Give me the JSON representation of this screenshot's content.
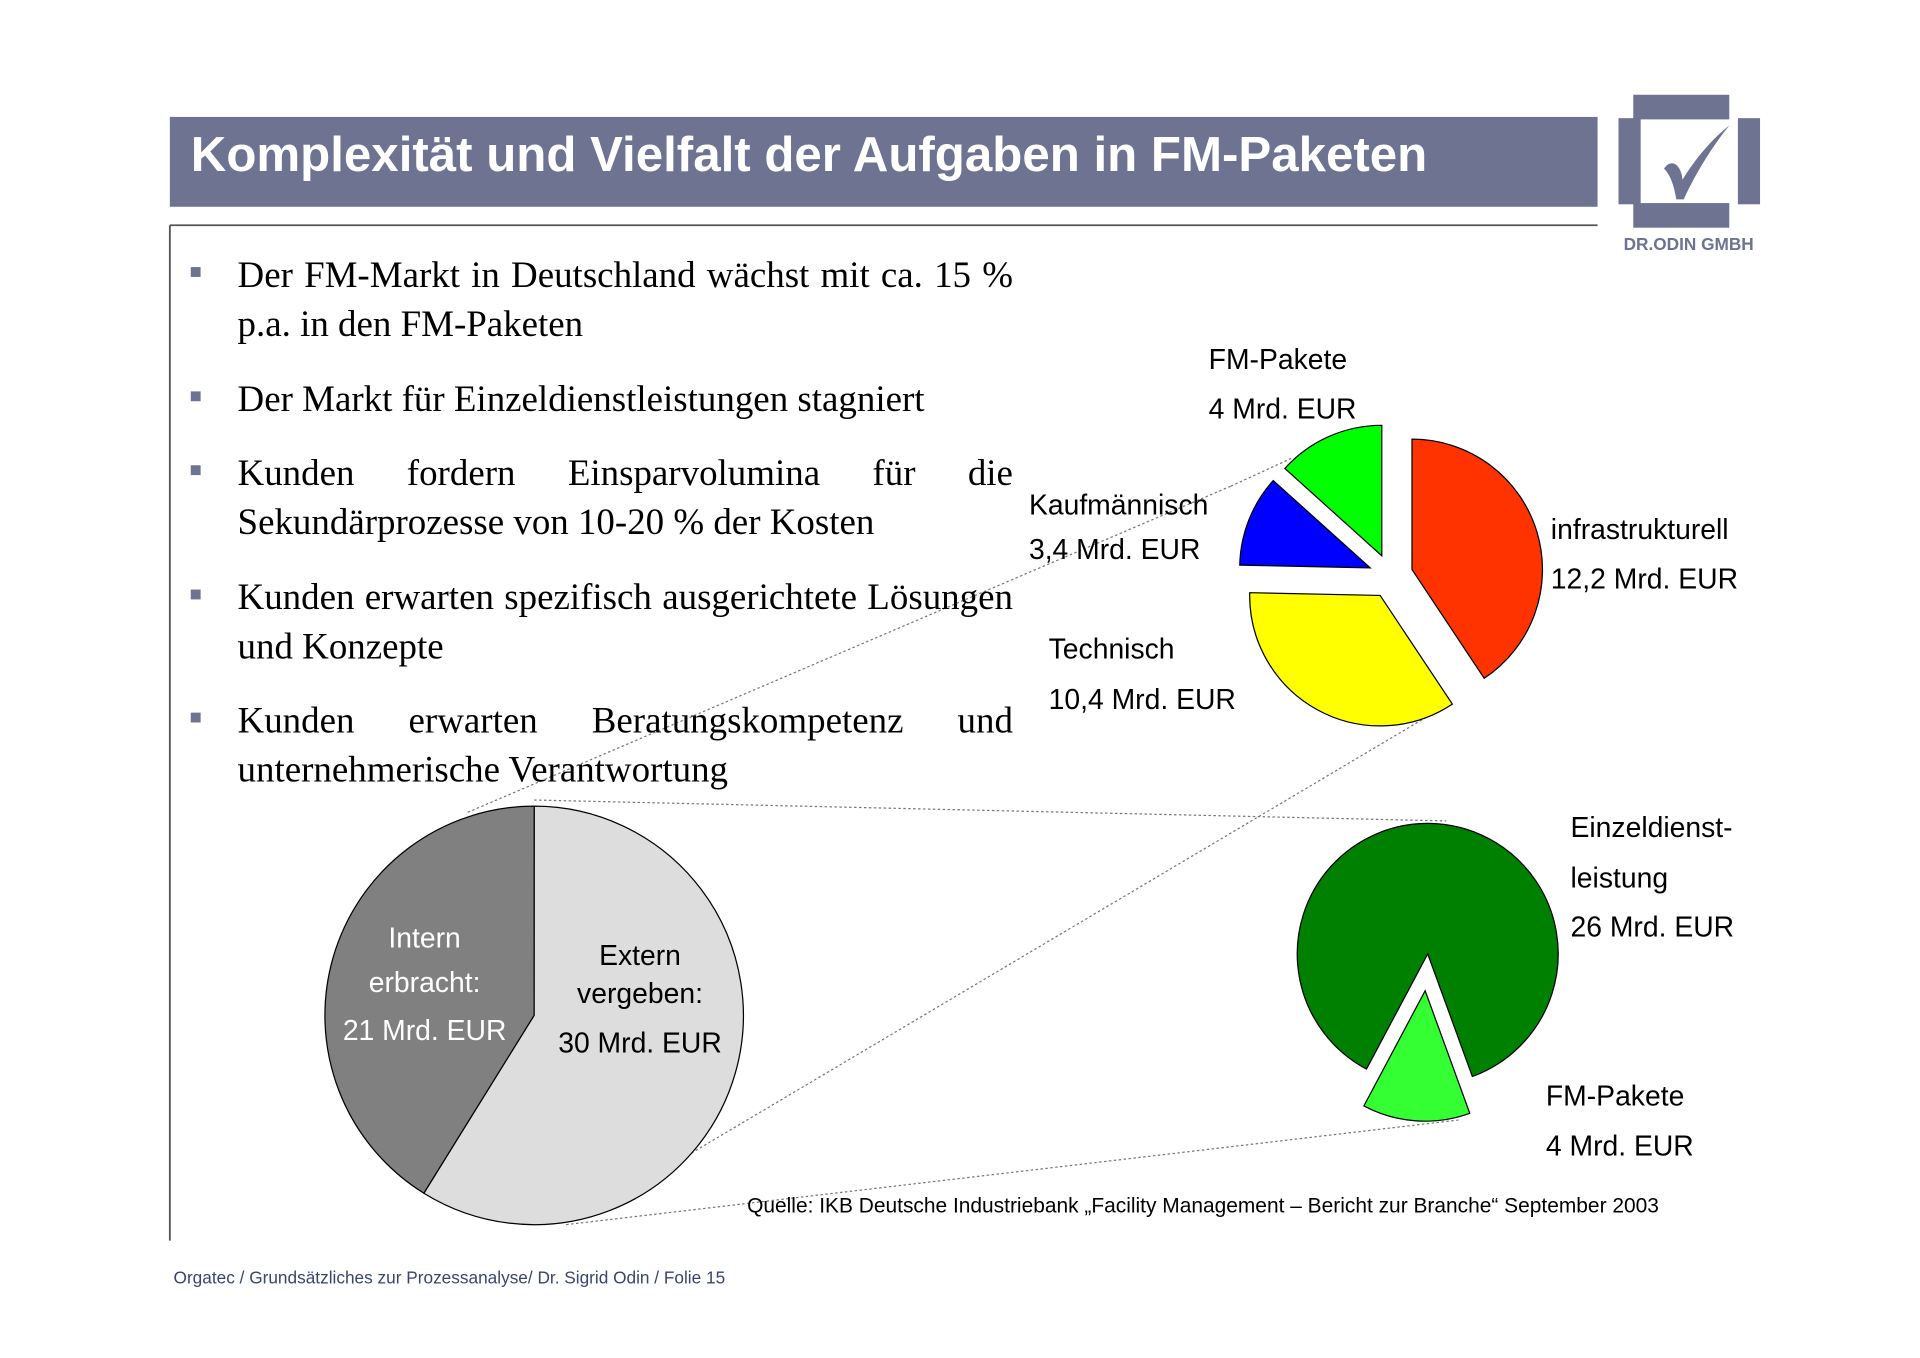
{
  "title": "Komplexität und Vielfalt der Aufgaben in FM-Paketen",
  "logo": {
    "text": "DR.ODIN GMBH",
    "color": "#6e7392",
    "icon": "checkmark-icon"
  },
  "bullets": [
    "Der FM-Markt in Deutschland wächst mit ca. 15 % p.a. in den FM-Paketen",
    "Der Markt für Einzeldienstleistungen stagniert",
    "Kunden fordern Einsparvolumina für die Sekundärprozesse von 10-20 % der Kosten",
    "Kunden erwarten spezifisch ausgerichtete Lösungen und Konzepte",
    "Kunden erwarten Beratungskompetenz und unternehmerische Verantwortung"
  ],
  "source": "Quelle: IKB Deutsche Industriebank „Facility Management – Bericht zur Branche“ September 2003",
  "footer": "Orgatec / Grundsätzliches zur Prozessanalyse/ Dr. Sigrid Odin / Folie 15",
  "chart_data": [
    {
      "type": "pie",
      "slices": [
        {
          "label": [
            "Intern",
            "erbracht:",
            "21 Mrd. EUR"
          ],
          "value": 21,
          "color": "#808080"
        },
        {
          "label": [
            "Extern",
            "vergeben:",
            "30 Mrd. EUR"
          ],
          "value": 30,
          "color": "#dddddd"
        }
      ]
    },
    {
      "type": "pie",
      "exploded": true,
      "slices": [
        {
          "label": [
            "infrastrukturell",
            "12,2 Mrd. EUR"
          ],
          "value": 12.2,
          "color": "#ff3300"
        },
        {
          "label": [
            "Technisch",
            "10,4 Mrd. EUR"
          ],
          "value": 10.4,
          "color": "#ffff00"
        },
        {
          "label": [
            "Kaufmännisch",
            "3,4 Mrd. EUR"
          ],
          "value": 3.4,
          "color": "#0000ff"
        },
        {
          "label": [
            "FM-Pakete",
            "4 Mrd. EUR"
          ],
          "value": 4,
          "color": "#00ff00"
        }
      ]
    },
    {
      "type": "pie",
      "exploded": true,
      "slices": [
        {
          "label": [
            "Einzeldienst-",
            "leistung",
            "26 Mrd. EUR"
          ],
          "value": 26,
          "color": "#008000"
        },
        {
          "label": [
            "FM-Pakete",
            "4 Mrd. EUR"
          ],
          "value": 4,
          "color": "#33ff33"
        }
      ]
    }
  ]
}
